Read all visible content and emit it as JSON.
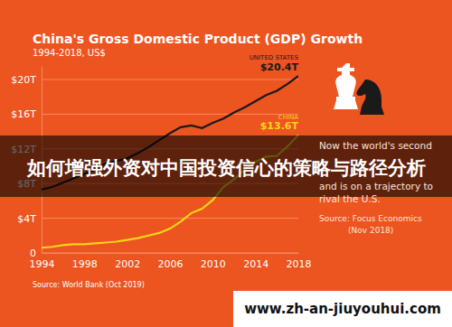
{
  "chart_data": {
    "type": "line",
    "title": "China's Gross Domestic Product (GDP) Growth",
    "subtitle": "1994-2018, US$",
    "source": "Source: World Bank (Oct 2019)",
    "x": [
      1994,
      1995,
      1996,
      1997,
      1998,
      1999,
      2000,
      2001,
      2002,
      2003,
      2004,
      2005,
      2006,
      2007,
      2008,
      2009,
      2010,
      2011,
      2012,
      2013,
      2014,
      2015,
      2016,
      2017,
      2018
    ],
    "series": [
      {
        "name": "UNITED STATES",
        "color": "#1a1a1a",
        "values": [
          7.3,
          7.6,
          8.1,
          8.6,
          9.1,
          9.6,
          10.3,
          10.6,
          10.9,
          11.5,
          12.2,
          13.0,
          13.8,
          14.5,
          14.7,
          14.4,
          15.0,
          15.5,
          16.2,
          16.8,
          17.5,
          18.2,
          18.7,
          19.5,
          20.4
        ]
      },
      {
        "name": "CHINA",
        "color": "#f7d417",
        "values": [
          0.6,
          0.7,
          0.9,
          1.0,
          1.0,
          1.1,
          1.2,
          1.3,
          1.5,
          1.7,
          2.0,
          2.3,
          2.8,
          3.6,
          4.6,
          5.1,
          6.1,
          7.6,
          8.5,
          9.6,
          10.5,
          11.1,
          11.2,
          12.3,
          13.6
        ]
      }
    ],
    "annotations": [
      "$20.4T",
      "$13.6T",
      "Now the world's second",
      "and is on a trajectory to",
      "rival the U.S.",
      "Source: Focus Economics",
      "(Nov 2018)"
    ],
    "xlim": [
      1994,
      2018
    ],
    "xticks": [
      1994,
      1998,
      2002,
      2006,
      2010,
      2014,
      2018
    ],
    "ylim": [
      0,
      21.5
    ],
    "yticks": [
      0,
      {
        "value": 4,
        "label": "$4T"
      },
      {
        "value": 8,
        "label": "$8T"
      },
      {
        "value": 12,
        "label": "$12T"
      },
      {
        "value": 16,
        "label": "$16T"
      },
      {
        "value": 20,
        "label": "$20T"
      }
    ],
    "grid": true
  },
  "banner": {
    "title": "如何增强外资对中国投资信心的策略与路径分析",
    "url": "www.zh-an-jiuyouhui.com"
  }
}
